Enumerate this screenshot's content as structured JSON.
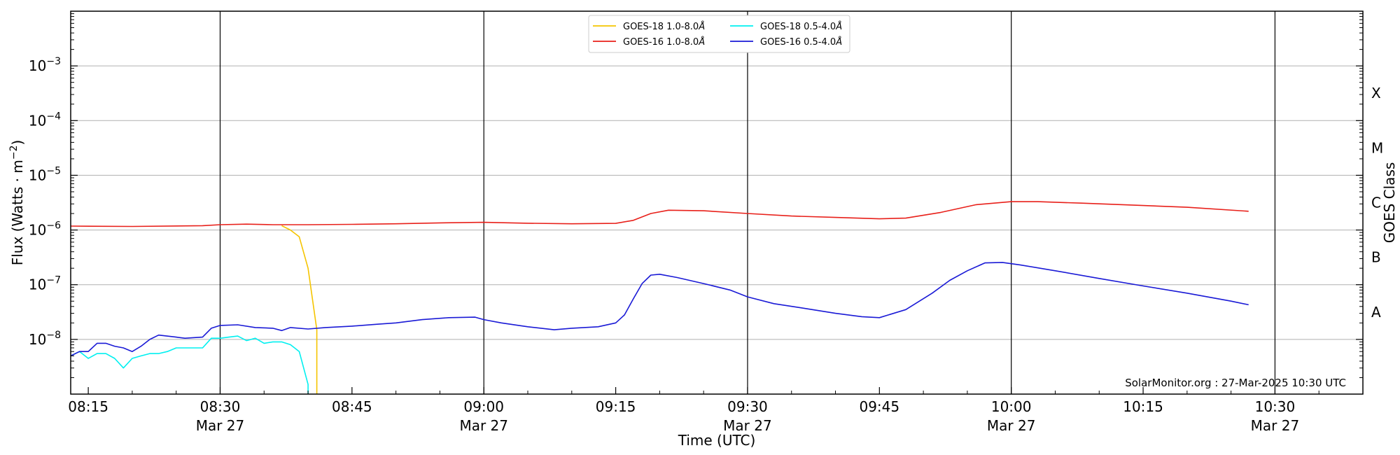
{
  "chart_data": {
    "type": "line",
    "xlabel": "Time (UTC)",
    "ylabel": "Flux (Watts · m",
    "ylabel_sup": "−2",
    "ylabel_end": ")",
    "right_label": "GOES Class",
    "credit": "SolarMonitor.org : 27-Mar-2025 10:30 UTC",
    "y_scale": "log",
    "ylim": [
      1e-09,
      0.01
    ],
    "xlim": [
      "08:13",
      "10:40"
    ],
    "x_ticks": [
      {
        "time": "08:15",
        "label": "08:15",
        "date": ""
      },
      {
        "time": "08:30",
        "label": "08:30",
        "date": "Mar 27"
      },
      {
        "time": "08:45",
        "label": "08:45",
        "date": ""
      },
      {
        "time": "09:00",
        "label": "09:00",
        "date": "Mar 27"
      },
      {
        "time": "09:15",
        "label": "09:15",
        "date": ""
      },
      {
        "time": "09:30",
        "label": "09:30",
        "date": "Mar 27"
      },
      {
        "time": "09:45",
        "label": "09:45",
        "date": ""
      },
      {
        "time": "10:00",
        "label": "10:00",
        "date": "Mar 27"
      },
      {
        "time": "10:15",
        "label": "10:15",
        "date": ""
      },
      {
        "time": "10:30",
        "label": "10:30",
        "date": "Mar 27"
      }
    ],
    "vertical_lines": [
      "08:30",
      "09:00",
      "09:30",
      "10:00",
      "10:30"
    ],
    "y_ticks": [
      {
        "value": 1e-08,
        "label_base": "10",
        "label_exp": "−8"
      },
      {
        "value": 1e-07,
        "label_base": "10",
        "label_exp": "−7"
      },
      {
        "value": 1e-06,
        "label_base": "10",
        "label_exp": "−6"
      },
      {
        "value": 1e-05,
        "label_base": "10",
        "label_exp": "−5"
      },
      {
        "value": 0.0001,
        "label_base": "10",
        "label_exp": "−4"
      },
      {
        "value": 0.001,
        "label_base": "10",
        "label_exp": "−3"
      }
    ],
    "gridlines": [
      1e-08,
      1e-07,
      1e-06,
      1e-05,
      0.0001,
      0.001
    ],
    "goes_classes": [
      {
        "label": "A",
        "value": 3.16e-08
      },
      {
        "label": "B",
        "value": 3.16e-07
      },
      {
        "label": "C",
        "value": 3.16e-06
      },
      {
        "label": "M",
        "value": 3.16e-05
      },
      {
        "label": "X",
        "value": 0.000316
      }
    ],
    "legend": {
      "placement": "top-center",
      "columns": 2
    },
    "series": [
      {
        "name": "GOES-18 1.0-8.0Å",
        "name_base": "GOES-18 1.0-8.0",
        "name_unit": "Å",
        "color": "#f5c400",
        "points": [
          [
            "08:37",
            1.2e-06
          ],
          [
            "08:38",
            1e-06
          ],
          [
            "08:39",
            7.5e-07
          ],
          [
            "08:40",
            2e-07
          ],
          [
            "08:41",
            1.5e-08
          ],
          [
            "08:41",
            1e-09
          ]
        ]
      },
      {
        "name": "GOES-16 1.0-8.0Å",
        "name_base": "GOES-16 1.0-8.0",
        "name_unit": "Å",
        "color": "#e8201a",
        "points": [
          [
            "08:13",
            1.18e-06
          ],
          [
            "08:20",
            1.16e-06
          ],
          [
            "08:28",
            1.2e-06
          ],
          [
            "08:30",
            1.25e-06
          ],
          [
            "08:33",
            1.28e-06
          ],
          [
            "08:36",
            1.25e-06
          ],
          [
            "08:40",
            1.25e-06
          ],
          [
            "08:45",
            1.27e-06
          ],
          [
            "08:50",
            1.3e-06
          ],
          [
            "08:55",
            1.35e-06
          ],
          [
            "09:00",
            1.38e-06
          ],
          [
            "09:05",
            1.33e-06
          ],
          [
            "09:10",
            1.3e-06
          ],
          [
            "09:15",
            1.32e-06
          ],
          [
            "09:17",
            1.5e-06
          ],
          [
            "09:19",
            2e-06
          ],
          [
            "09:21",
            2.3e-06
          ],
          [
            "09:25",
            2.25e-06
          ],
          [
            "09:30",
            2e-06
          ],
          [
            "09:35",
            1.8e-06
          ],
          [
            "09:40",
            1.7e-06
          ],
          [
            "09:45",
            1.6e-06
          ],
          [
            "09:48",
            1.65e-06
          ],
          [
            "09:52",
            2.1e-06
          ],
          [
            "09:56",
            2.9e-06
          ],
          [
            "10:00",
            3.3e-06
          ],
          [
            "10:03",
            3.3e-06
          ],
          [
            "10:08",
            3.1e-06
          ],
          [
            "10:15",
            2.8e-06
          ],
          [
            "10:20",
            2.6e-06
          ],
          [
            "10:27",
            2.2e-06
          ]
        ]
      },
      {
        "name": "GOES-18 0.5-4.0Å",
        "name_base": "GOES-18 0.5-4.0",
        "name_unit": "Å",
        "color": "#00f0f0",
        "points": [
          [
            "08:13",
            5e-09
          ],
          [
            "08:14",
            6e-09
          ],
          [
            "08:15",
            4.5e-09
          ],
          [
            "08:16",
            5.5e-09
          ],
          [
            "08:17",
            5.5e-09
          ],
          [
            "08:18",
            4.5e-09
          ],
          [
            "08:19",
            3e-09
          ],
          [
            "08:20",
            4.5e-09
          ],
          [
            "08:21",
            5e-09
          ],
          [
            "08:22",
            5.5e-09
          ],
          [
            "08:23",
            5.5e-09
          ],
          [
            "08:24",
            6e-09
          ],
          [
            "08:25",
            7e-09
          ],
          [
            "08:26",
            7e-09
          ],
          [
            "08:27",
            7e-09
          ],
          [
            "08:28",
            7e-09
          ],
          [
            "08:29",
            1.05e-08
          ],
          [
            "08:30",
            1.05e-08
          ],
          [
            "08:31",
            1.1e-08
          ],
          [
            "08:32",
            1.15e-08
          ],
          [
            "08:33",
            9.5e-09
          ],
          [
            "08:34",
            1.05e-08
          ],
          [
            "08:35",
            8.5e-09
          ],
          [
            "08:36",
            9e-09
          ],
          [
            "08:37",
            9e-09
          ],
          [
            "08:38",
            8e-09
          ],
          [
            "08:39",
            6e-09
          ],
          [
            "08:40",
            1.5e-09
          ],
          [
            "08:40",
            1e-09
          ]
        ]
      },
      {
        "name": "GOES-16 0.5-4.0Å",
        "name_base": "GOES-16 0.5-4.0",
        "name_unit": "Å",
        "color": "#1a1ad6",
        "points": [
          [
            "08:13",
            5e-09
          ],
          [
            "08:14",
            6e-09
          ],
          [
            "08:15",
            6e-09
          ],
          [
            "08:16",
            8.5e-09
          ],
          [
            "08:17",
            8.5e-09
          ],
          [
            "08:18",
            7.5e-09
          ],
          [
            "08:19",
            7e-09
          ],
          [
            "08:20",
            6e-09
          ],
          [
            "08:21",
            7.5e-09
          ],
          [
            "08:22",
            1e-08
          ],
          [
            "08:23",
            1.2e-08
          ],
          [
            "08:25",
            1.1e-08
          ],
          [
            "08:26",
            1.05e-08
          ],
          [
            "08:28",
            1.1e-08
          ],
          [
            "08:29",
            1.6e-08
          ],
          [
            "08:30",
            1.8e-08
          ],
          [
            "08:32",
            1.85e-08
          ],
          [
            "08:34",
            1.65e-08
          ],
          [
            "08:36",
            1.6e-08
          ],
          [
            "08:37",
            1.45e-08
          ],
          [
            "08:38",
            1.65e-08
          ],
          [
            "08:40",
            1.55e-08
          ],
          [
            "08:42",
            1.65e-08
          ],
          [
            "08:45",
            1.75e-08
          ],
          [
            "08:48",
            1.9e-08
          ],
          [
            "08:50",
            2e-08
          ],
          [
            "08:53",
            2.3e-08
          ],
          [
            "08:56",
            2.5e-08
          ],
          [
            "08:59",
            2.55e-08
          ],
          [
            "09:00",
            2.3e-08
          ],
          [
            "09:02",
            2e-08
          ],
          [
            "09:05",
            1.7e-08
          ],
          [
            "09:08",
            1.5e-08
          ],
          [
            "09:10",
            1.6e-08
          ],
          [
            "09:13",
            1.7e-08
          ],
          [
            "09:15",
            2e-08
          ],
          [
            "09:16",
            2.8e-08
          ],
          [
            "09:17",
            5.5e-08
          ],
          [
            "09:18",
            1.05e-07
          ],
          [
            "09:19",
            1.5e-07
          ],
          [
            "09:20",
            1.55e-07
          ],
          [
            "09:22",
            1.35e-07
          ],
          [
            "09:25",
            1.05e-07
          ],
          [
            "09:28",
            8e-08
          ],
          [
            "09:30",
            6e-08
          ],
          [
            "09:33",
            4.5e-08
          ],
          [
            "09:36",
            3.8e-08
          ],
          [
            "09:40",
            3e-08
          ],
          [
            "09:43",
            2.6e-08
          ],
          [
            "09:45",
            2.5e-08
          ],
          [
            "09:48",
            3.5e-08
          ],
          [
            "09:51",
            7e-08
          ],
          [
            "09:53",
            1.2e-07
          ],
          [
            "09:55",
            1.8e-07
          ],
          [
            "09:57",
            2.5e-07
          ],
          [
            "09:59",
            2.55e-07
          ],
          [
            "10:01",
            2.3e-07
          ],
          [
            "10:05",
            1.8e-07
          ],
          [
            "10:10",
            1.3e-07
          ],
          [
            "10:15",
            9.5e-08
          ],
          [
            "10:20",
            7e-08
          ],
          [
            "10:25",
            5e-08
          ],
          [
            "10:27",
            4.3e-08
          ]
        ]
      }
    ]
  }
}
